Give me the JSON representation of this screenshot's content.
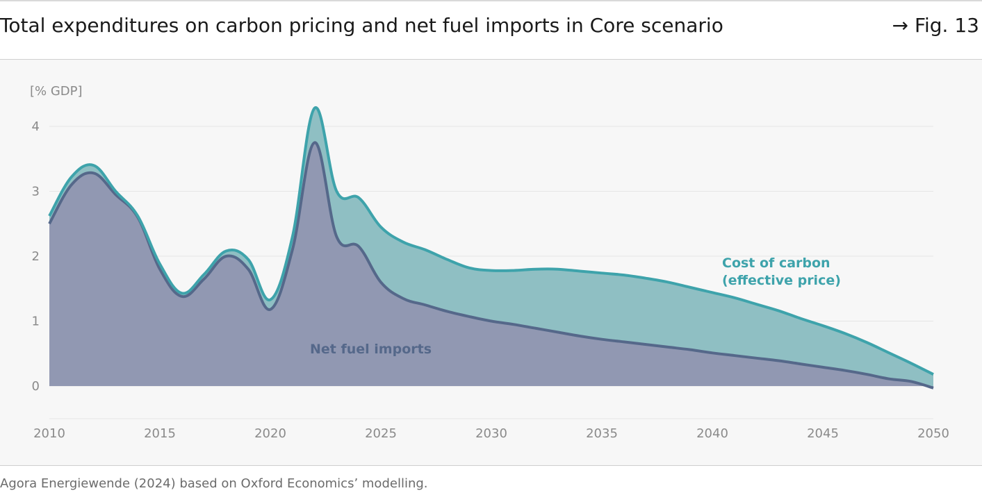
{
  "header": {
    "title": "Total expenditures on carbon pricing and net fuel imports in Core scenario",
    "fig_ref": "→ Fig. 13"
  },
  "footer": {
    "source": "Agora Energiewende (2024) based on Oxford Economics’ modelling."
  },
  "colors": {
    "carbon_fill": "#8fbfc3",
    "carbon_line": "#3ea3ab",
    "fuel_fill": "#9198b2",
    "fuel_line": "#55688a",
    "grid": "#e6e6e6",
    "axis": "#8a8a8a"
  },
  "chart_data": {
    "type": "area",
    "stacked": true,
    "unit_label": "[% GDP]",
    "xlim": [
      2010,
      2050
    ],
    "ylim": [
      -0.5,
      4.5
    ],
    "x_ticks": [
      "2010",
      "2015",
      "2020",
      "2025",
      "2030",
      "2035",
      "2040",
      "2045",
      "2050"
    ],
    "y_ticks": [
      "0",
      "1",
      "2",
      "3",
      "4"
    ],
    "x": [
      2010,
      2011,
      2012,
      2013,
      2014,
      2015,
      2016,
      2017,
      2018,
      2019,
      2020,
      2021,
      2022,
      2023,
      2024,
      2025,
      2026,
      2027,
      2028,
      2029,
      2030,
      2031,
      2032,
      2033,
      2034,
      2035,
      2036,
      2037,
      2038,
      2039,
      2040,
      2041,
      2042,
      2043,
      2044,
      2045,
      2046,
      2047,
      2048,
      2049,
      2050
    ],
    "series": [
      {
        "name": "Net fuel imports",
        "values": [
          2.5,
          3.1,
          3.28,
          2.95,
          2.6,
          1.8,
          1.38,
          1.65,
          2.0,
          1.8,
          1.18,
          2.1,
          3.75,
          2.3,
          2.15,
          1.6,
          1.35,
          1.25,
          1.15,
          1.07,
          1.0,
          0.95,
          0.89,
          0.83,
          0.77,
          0.72,
          0.68,
          0.64,
          0.6,
          0.56,
          0.51,
          0.47,
          0.43,
          0.39,
          0.34,
          0.29,
          0.24,
          0.18,
          0.11,
          0.07,
          -0.03
        ]
      },
      {
        "name": "Cost of carbon (effective price)",
        "total_values": [
          2.62,
          3.22,
          3.4,
          3.0,
          2.62,
          1.88,
          1.43,
          1.72,
          2.08,
          1.95,
          1.33,
          2.3,
          4.28,
          3.0,
          2.9,
          2.45,
          2.22,
          2.1,
          1.95,
          1.82,
          1.78,
          1.78,
          1.8,
          1.8,
          1.77,
          1.74,
          1.71,
          1.66,
          1.6,
          1.52,
          1.44,
          1.36,
          1.26,
          1.16,
          1.04,
          0.93,
          0.81,
          0.67,
          0.51,
          0.35,
          0.18
        ]
      }
    ],
    "labels": {
      "carbon_line1": "Cost of carbon",
      "carbon_line2": "(effective price)",
      "fuel": "Net fuel imports"
    }
  }
}
